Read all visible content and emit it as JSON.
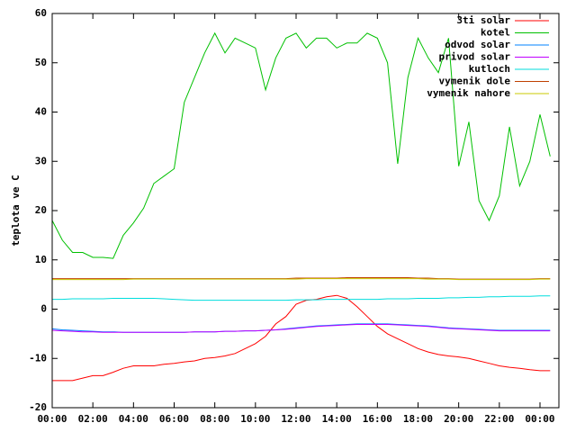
{
  "chart_data": {
    "type": "line",
    "ylabel": "teplota ve C",
    "x": [
      0,
      0.5,
      1,
      1.5,
      2,
      2.5,
      3,
      3.5,
      4,
      4.5,
      5,
      5.5,
      6,
      6.5,
      7,
      7.5,
      8,
      8.5,
      9,
      9.5,
      10,
      10.5,
      11,
      11.5,
      12,
      12.5,
      13,
      13.5,
      14,
      14.5,
      15,
      15.5,
      16,
      16.5,
      17,
      17.5,
      18,
      18.5,
      19,
      19.5,
      20,
      20.5,
      21,
      21.5,
      22,
      22.5,
      23,
      23.5,
      24,
      24.5
    ],
    "xlim": [
      0,
      24.93
    ],
    "xticks": [
      {
        "value": 0,
        "label": "00:00"
      },
      {
        "value": 2,
        "label": "02:00"
      },
      {
        "value": 4,
        "label": "04:00"
      },
      {
        "value": 6,
        "label": "06:00"
      },
      {
        "value": 8,
        "label": "08:00"
      },
      {
        "value": 10,
        "label": "10:00"
      },
      {
        "value": 12,
        "label": "12:00"
      },
      {
        "value": 14,
        "label": "14:00"
      },
      {
        "value": 16,
        "label": "16:00"
      },
      {
        "value": 18,
        "label": "18:00"
      },
      {
        "value": 20,
        "label": "20:00"
      },
      {
        "value": 22,
        "label": "22:00"
      },
      {
        "value": 24,
        "label": "00:00"
      }
    ],
    "ylim": [
      -20,
      60
    ],
    "yticks": [
      -20,
      -10,
      0,
      10,
      20,
      30,
      40,
      50,
      60
    ],
    "legend": "top-right",
    "series": [
      {
        "name": "3ti solar",
        "color": "#ff0000",
        "values": [
          -14.5,
          -14.5,
          -14.5,
          -14,
          -13.5,
          -13.5,
          -12.8,
          -12,
          -11.5,
          -11.5,
          -11.5,
          -11.2,
          -11,
          -10.7,
          -10.5,
          -10,
          -9.8,
          -9.5,
          -9,
          -8,
          -7,
          -5.5,
          -3,
          -1.5,
          1,
          1.8,
          2,
          2.5,
          2.8,
          2.2,
          0.5,
          -1.5,
          -3.5,
          -5,
          -6,
          -7,
          -8,
          -8.7,
          -9.2,
          -9.5,
          -9.7,
          -10,
          -10.5,
          -11,
          -11.5,
          -11.8,
          -12,
          -12.3,
          -12.5,
          -12.5
        ]
      },
      {
        "name": "kotel",
        "color": "#00c000",
        "values": [
          18,
          14,
          11.5,
          11.5,
          10.5,
          10.5,
          10.3,
          15,
          17.5,
          20.5,
          25.5,
          27,
          28.5,
          42,
          47,
          52,
          56,
          52,
          55,
          54,
          53,
          44.5,
          51,
          55,
          56,
          53,
          55,
          55,
          53,
          54,
          54,
          56,
          55,
          50,
          29.5,
          47,
          55,
          51,
          48,
          55,
          29,
          38,
          22,
          18,
          23,
          37,
          25,
          30,
          39.5,
          31
        ]
      },
      {
        "name": "odvod solar",
        "color": "#0080ff",
        "values": [
          -4,
          -4.2,
          -4.3,
          -4.4,
          -4.5,
          -4.6,
          -4.6,
          -4.7,
          -4.7,
          -4.7,
          -4.7,
          -4.7,
          -4.7,
          -4.7,
          -4.6,
          -4.6,
          -4.6,
          -4.5,
          -4.5,
          -4.4,
          -4.4,
          -4.3,
          -4.2,
          -4,
          -3.8,
          -3.6,
          -3.4,
          -3.3,
          -3.2,
          -3.1,
          -3,
          -3,
          -3,
          -3,
          -3.1,
          -3.2,
          -3.3,
          -3.4,
          -3.6,
          -3.8,
          -3.9,
          -4,
          -4.1,
          -4.2,
          -4.3,
          -4.3,
          -4.3,
          -4.3,
          -4.3,
          -4.3
        ]
      },
      {
        "name": "privod solar",
        "color": "#c000ff",
        "values": [
          -4.3,
          -4.4,
          -4.5,
          -4.6,
          -4.6,
          -4.7,
          -4.7,
          -4.7,
          -4.7,
          -4.7,
          -4.7,
          -4.7,
          -4.7,
          -4.7,
          -4.6,
          -4.6,
          -4.6,
          -4.5,
          -4.5,
          -4.4,
          -4.4,
          -4.3,
          -4.2,
          -4.1,
          -3.9,
          -3.7,
          -3.5,
          -3.4,
          -3.3,
          -3.2,
          -3.1,
          -3.1,
          -3.1,
          -3.1,
          -3.2,
          -3.3,
          -3.4,
          -3.5,
          -3.7,
          -3.9,
          -4,
          -4.1,
          -4.2,
          -4.3,
          -4.4,
          -4.4,
          -4.4,
          -4.4,
          -4.4,
          -4.4
        ]
      },
      {
        "name": "kutloch",
        "color": "#00dddd",
        "values": [
          2,
          2,
          2.1,
          2.1,
          2.1,
          2.1,
          2.2,
          2.2,
          2.2,
          2.2,
          2.2,
          2.1,
          2,
          1.9,
          1.8,
          1.8,
          1.8,
          1.8,
          1.8,
          1.8,
          1.8,
          1.8,
          1.8,
          1.8,
          1.9,
          1.9,
          1.9,
          2,
          2,
          2,
          2,
          2,
          2,
          2.1,
          2.1,
          2.1,
          2.2,
          2.2,
          2.2,
          2.3,
          2.3,
          2.4,
          2.4,
          2.5,
          2.5,
          2.6,
          2.6,
          2.6,
          2.7,
          2.7
        ]
      },
      {
        "name": "vymenik dole",
        "color": "#c04000",
        "values": [
          6.2,
          6.2,
          6.2,
          6.2,
          6.2,
          6.2,
          6.2,
          6.2,
          6.2,
          6.2,
          6.2,
          6.2,
          6.2,
          6.2,
          6.2,
          6.2,
          6.2,
          6.2,
          6.2,
          6.2,
          6.2,
          6.2,
          6.2,
          6.2,
          6.3,
          6.3,
          6.3,
          6.3,
          6.3,
          6.4,
          6.4,
          6.4,
          6.4,
          6.4,
          6.4,
          6.4,
          6.3,
          6.3,
          6.2,
          6.2,
          6.1,
          6.1,
          6.1,
          6.1,
          6.1,
          6.1,
          6.1,
          6.1,
          6.2,
          6.2
        ]
      },
      {
        "name": "vymenik nahore",
        "color": "#c8c800",
        "values": [
          6,
          6,
          6,
          6,
          6,
          6,
          6,
          6,
          6.1,
          6.1,
          6.1,
          6.1,
          6.1,
          6.1,
          6.1,
          6.1,
          6.1,
          6.1,
          6.1,
          6.1,
          6.1,
          6.1,
          6.1,
          6.1,
          6.1,
          6.2,
          6.2,
          6.2,
          6.2,
          6.2,
          6.2,
          6.2,
          6.2,
          6.2,
          6.2,
          6.2,
          6.2,
          6.1,
          6.1,
          6.1,
          6,
          6,
          6,
          6,
          6,
          6,
          6,
          6,
          6.1,
          6.1
        ]
      }
    ]
  }
}
